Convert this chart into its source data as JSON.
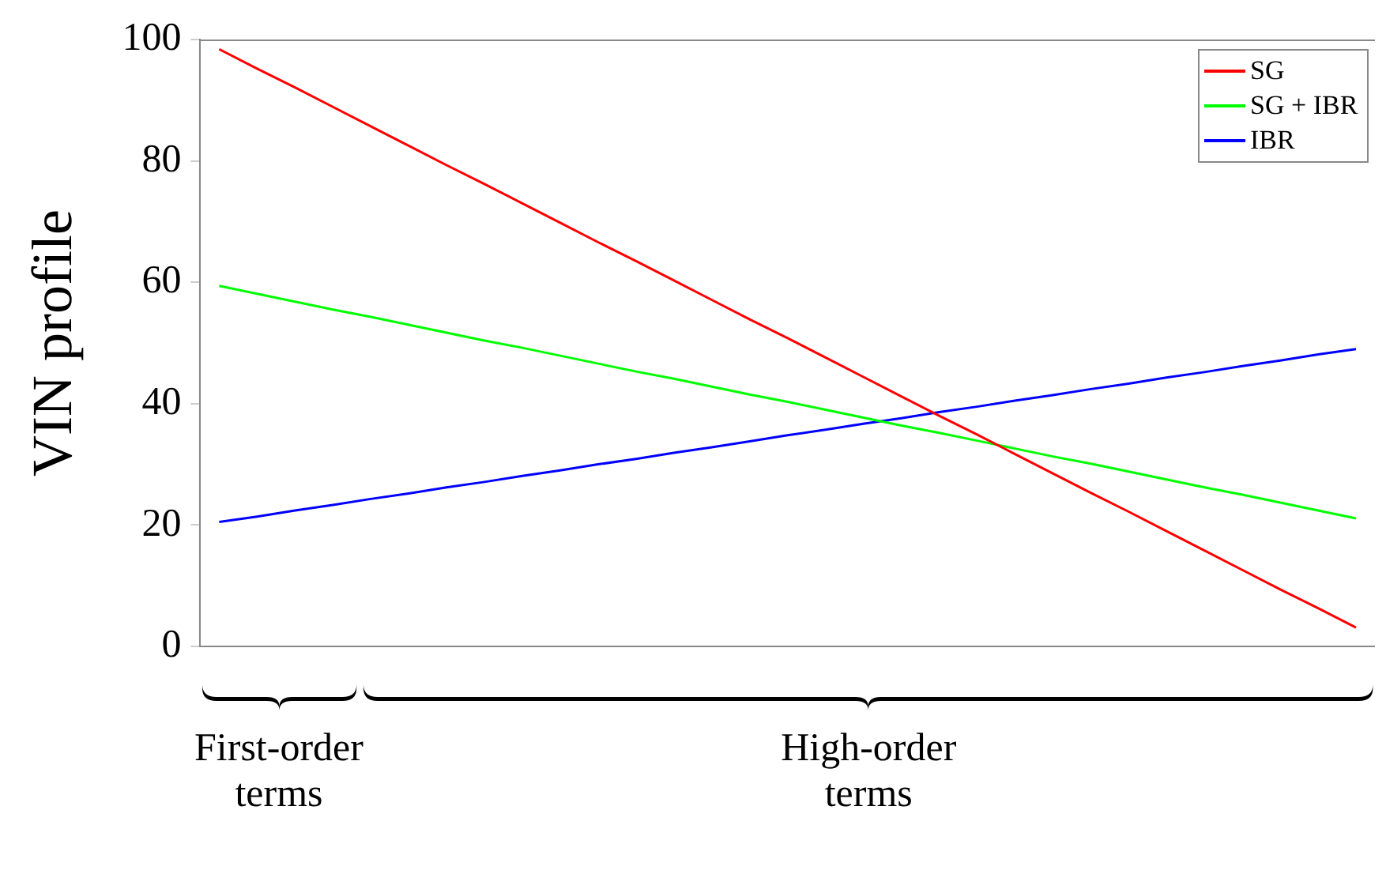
{
  "chart_data": {
    "type": "line",
    "ylabel": "VIN profile",
    "categories": [
      null,
      null,
      null,
      null,
      null,
      null,
      null,
      null,
      null,
      null,
      null,
      null,
      null,
      null,
      null,
      null,
      null,
      null,
      null,
      null,
      null,
      null,
      null,
      null,
      null,
      null,
      null,
      null,
      null,
      null,
      null
    ],
    "series": [
      {
        "name": "SG",
        "color": "#ff0000",
        "values": [
          98.4,
          95.2,
          92.1,
          88.9,
          85.7,
          82.5,
          79.3,
          76.2,
          73.0,
          69.8,
          66.6,
          63.5,
          60.3,
          57.1,
          53.9,
          50.8,
          47.6,
          44.4,
          41.2,
          38.0,
          34.9,
          31.7,
          28.5,
          25.3,
          22.2,
          19.0,
          15.8,
          12.6,
          9.4,
          6.3,
          3.1
        ]
      },
      {
        "name": "SG + IBR",
        "color": "#00ff00",
        "values": [
          59.4,
          58.1,
          56.8,
          55.5,
          54.3,
          53.0,
          51.7,
          50.4,
          49.2,
          47.9,
          46.6,
          45.3,
          44.1,
          42.8,
          41.5,
          40.3,
          39.0,
          37.7,
          36.4,
          35.2,
          33.9,
          32.6,
          31.3,
          30.1,
          28.8,
          27.5,
          26.2,
          25.0,
          23.7,
          22.4,
          21.1
        ]
      },
      {
        "name": "IBR",
        "color": "#0000ff",
        "values": [
          20.5,
          21.4,
          22.4,
          23.3,
          24.3,
          25.2,
          26.2,
          27.1,
          28.1,
          29.0,
          30.0,
          30.9,
          31.9,
          32.8,
          33.8,
          34.8,
          35.7,
          36.7,
          37.6,
          38.6,
          39.5,
          40.5,
          41.4,
          42.4,
          43.3,
          44.3,
          45.2,
          46.2,
          47.1,
          48.1,
          49.0
        ]
      }
    ],
    "ylim": [
      0,
      100
    ],
    "yticks": [
      0,
      20,
      40,
      60,
      80,
      100
    ],
    "grid": false,
    "legend": "top right",
    "marker": "none",
    "line_style": "solid",
    "annotations": [
      "First-order terms",
      "High-order terms"
    ]
  }
}
